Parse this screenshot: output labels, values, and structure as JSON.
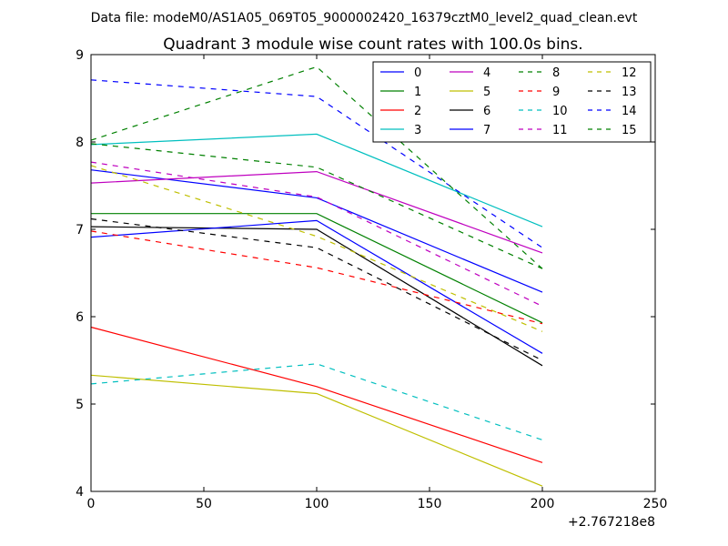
{
  "suptitle": "Data file: modeM0/AS1A05_069T05_9000002420_16379cztM0_level2_quad_clean.evt",
  "chart_data": {
    "type": "line",
    "title": "Quadrant 3 module wise count rates with 100.0s bins.",
    "xlabel": "",
    "ylabel": "",
    "x_offset_label": "+2.767218e8",
    "xlim": [
      0,
      250
    ],
    "ylim": [
      4,
      9
    ],
    "x_ticks": [
      0,
      50,
      100,
      150,
      200,
      250
    ],
    "y_ticks": [
      4,
      5,
      6,
      7,
      8,
      9
    ],
    "grid": false,
    "legend_position": "top-right",
    "x": [
      0,
      100,
      200
    ],
    "series": [
      {
        "name": "0",
        "color": "#0000ff",
        "dash": "solid",
        "values": [
          7.68,
          7.36,
          6.28
        ]
      },
      {
        "name": "1",
        "color": "#008000",
        "dash": "solid",
        "values": [
          7.18,
          7.18,
          5.93
        ]
      },
      {
        "name": "2",
        "color": "#ff0000",
        "dash": "solid",
        "values": [
          5.88,
          5.2,
          4.33
        ]
      },
      {
        "name": "3",
        "color": "#00bfbf",
        "dash": "solid",
        "values": [
          7.97,
          8.09,
          7.03
        ]
      },
      {
        "name": "4",
        "color": "#bf00bf",
        "dash": "solid",
        "values": [
          7.53,
          7.66,
          6.73
        ]
      },
      {
        "name": "5",
        "color": "#bfbf00",
        "dash": "solid",
        "values": [
          5.33,
          5.12,
          4.06
        ]
      },
      {
        "name": "6",
        "color": "#000000",
        "dash": "solid",
        "values": [
          7.03,
          7.0,
          5.44
        ]
      },
      {
        "name": "7",
        "color": "#0000ff",
        "dash": "solid",
        "values": [
          6.91,
          7.1,
          5.58
        ]
      },
      {
        "name": "8",
        "color": "#008000",
        "dash": "dashed",
        "values": [
          7.98,
          7.71,
          6.55
        ]
      },
      {
        "name": "9",
        "color": "#ff0000",
        "dash": "dashed",
        "values": [
          6.98,
          6.56,
          5.92
        ]
      },
      {
        "name": "10",
        "color": "#00bfbf",
        "dash": "dashed",
        "values": [
          5.23,
          5.46,
          4.59
        ]
      },
      {
        "name": "11",
        "color": "#bf00bf",
        "dash": "dashed",
        "values": [
          7.77,
          7.37,
          6.12
        ]
      },
      {
        "name": "12",
        "color": "#bfbf00",
        "dash": "dashed",
        "values": [
          7.73,
          6.92,
          5.83
        ]
      },
      {
        "name": "13",
        "color": "#000000",
        "dash": "dashed",
        "values": [
          7.12,
          6.79,
          5.5
        ]
      },
      {
        "name": "14",
        "color": "#0000ff",
        "dash": "dashed",
        "values": [
          8.71,
          8.52,
          6.79
        ]
      },
      {
        "name": "15",
        "color": "#008000",
        "dash": "dashed",
        "values": [
          8.02,
          8.86,
          6.55
        ]
      }
    ]
  }
}
